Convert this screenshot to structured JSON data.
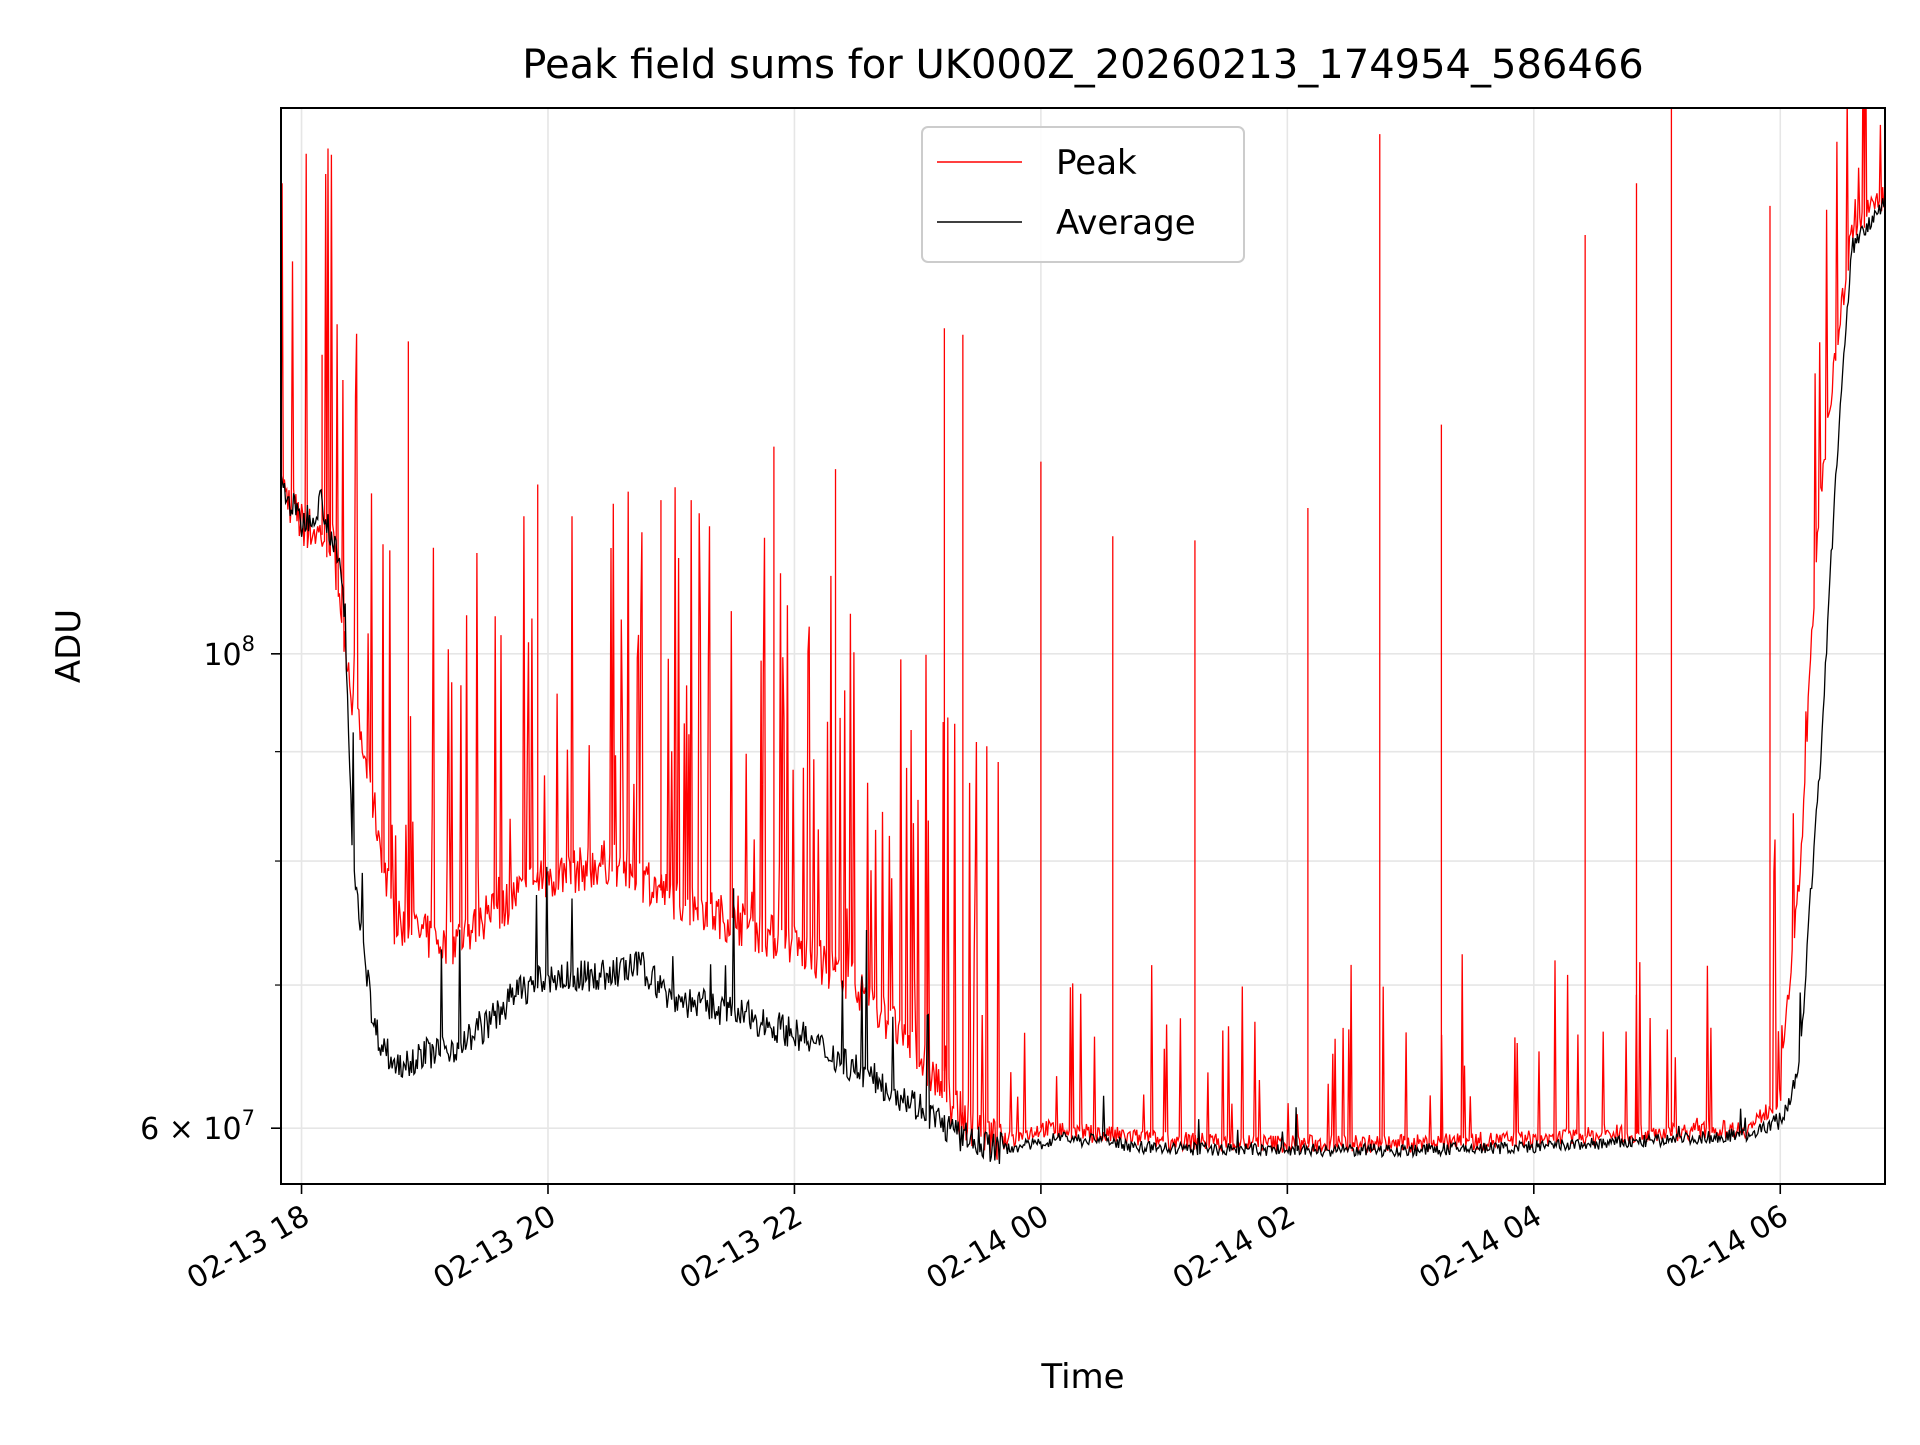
{
  "chart_data": {
    "type": "line",
    "title": "Peak field sums for UK000Z_20260213_174954_586466",
    "xlabel": "Time",
    "ylabel": "ADU",
    "x_scale": "time",
    "y_scale": "log",
    "xlim": [
      "2026-02-13 17:50",
      "2026-02-14 06:51"
    ],
    "ylim": [
      56500000,
      180000000
    ],
    "x_ticks": [
      {
        "value": "2026-02-13 18:00",
        "label": "02-13 18"
      },
      {
        "value": "2026-02-13 20:00",
        "label": "02-13 20"
      },
      {
        "value": "2026-02-13 22:00",
        "label": "02-13 22"
      },
      {
        "value": "2026-02-14 00:00",
        "label": "02-14 00"
      },
      {
        "value": "2026-02-14 02:00",
        "label": "02-14 02"
      },
      {
        "value": "2026-02-14 04:00",
        "label": "02-14 04"
      },
      {
        "value": "2026-02-14 06:00",
        "label": "02-14 06"
      }
    ],
    "y_ticks_major": [
      {
        "value": 60000000,
        "label": "6 × 10",
        "exp": "7"
      },
      {
        "value": 100000000,
        "label": "10",
        "exp": "8"
      }
    ],
    "y_ticks_minor": [
      70000000,
      80000000,
      90000000
    ],
    "grid": true,
    "legend": {
      "position": "upper center"
    },
    "series": [
      {
        "name": "Peak",
        "color": "#ff0000",
        "x": [
          "2026-02-13 17:50",
          "2026-02-13 18:00",
          "2026-02-13 18:15",
          "2026-02-13 18:25",
          "2026-02-13 18:45",
          "2026-02-13 19:10",
          "2026-02-13 19:30",
          "2026-02-13 19:50",
          "2026-02-13 20:30",
          "2026-02-13 21:00",
          "2026-02-13 21:30",
          "2026-02-13 22:00",
          "2026-02-13 22:30",
          "2026-02-13 23:00",
          "2026-02-13 23:20",
          "2026-02-13 23:40",
          "2026-02-14 00:00",
          "2026-02-14 01:00",
          "2026-02-14 02:00",
          "2026-02-14 03:00",
          "2026-02-14 04:00",
          "2026-02-14 05:00",
          "2026-02-14 05:45",
          "2026-02-14 06:00",
          "2026-02-14 06:10",
          "2026-02-14 06:20",
          "2026-02-14 06:35",
          "2026-02-14 06:51"
        ],
        "y": [
          120000000,
          115000000,
          113000000,
          95000000,
          75000000,
          73000000,
          75000000,
          78000000,
          80000000,
          77000000,
          75000000,
          73000000,
          70000000,
          65000000,
          61000000,
          59000000,
          60000000,
          59200000,
          59000000,
          59000000,
          59300000,
          59700000,
          60000000,
          62000000,
          80000000,
          120000000,
          158000000,
          164000000
        ],
        "spikes": [
          {
            "x": "2026-02-13 18:10",
            "y": 138000000
          },
          {
            "x": "2026-02-13 18:52",
            "y": 140000000
          },
          {
            "x": "2026-02-13 19:55",
            "y": 120000000
          },
          {
            "x": "2026-02-13 20:55",
            "y": 118000000
          },
          {
            "x": "2026-02-13 21:50",
            "y": 125000000
          },
          {
            "x": "2026-02-13 22:20",
            "y": 122000000
          },
          {
            "x": "2026-02-13 23:13",
            "y": 142000000
          },
          {
            "x": "2026-02-13 23:22",
            "y": 141000000
          },
          {
            "x": "2026-02-14 00:00",
            "y": 123000000
          },
          {
            "x": "2026-02-14 00:35",
            "y": 113500000
          },
          {
            "x": "2026-02-14 01:15",
            "y": 113000000
          },
          {
            "x": "2026-02-14 02:10",
            "y": 117000000
          },
          {
            "x": "2026-02-14 02:45",
            "y": 175000000
          },
          {
            "x": "2026-02-14 03:15",
            "y": 128000000
          },
          {
            "x": "2026-02-14 04:25",
            "y": 157000000
          },
          {
            "x": "2026-02-14 04:50",
            "y": 166000000
          },
          {
            "x": "2026-02-14 05:07",
            "y": 180000000
          },
          {
            "x": "2026-02-14 05:55",
            "y": 162000000
          }
        ]
      },
      {
        "name": "Average",
        "color": "#000000",
        "x": [
          "2026-02-13 17:50",
          "2026-02-13 18:00",
          "2026-02-13 18:10",
          "2026-02-13 18:20",
          "2026-02-13 18:25",
          "2026-02-13 18:35",
          "2026-02-13 18:45",
          "2026-02-13 19:00",
          "2026-02-13 19:15",
          "2026-02-13 19:30",
          "2026-02-13 19:45",
          "2026-02-13 20:00",
          "2026-02-13 20:30",
          "2026-02-13 20:45",
          "2026-02-13 21:00",
          "2026-02-13 21:30",
          "2026-02-13 22:00",
          "2026-02-13 22:30",
          "2026-02-13 23:00",
          "2026-02-13 23:20",
          "2026-02-13 23:40",
          "2026-02-14 00:00",
          "2026-02-14 00:10",
          "2026-02-14 00:20",
          "2026-02-14 00:30",
          "2026-02-14 00:40",
          "2026-02-14 01:00",
          "2026-02-14 02:00",
          "2026-02-14 03:00",
          "2026-02-14 04:00",
          "2026-02-14 05:00",
          "2026-02-14 05:45",
          "2026-02-14 06:00",
          "2026-02-14 06:05",
          "2026-02-14 06:10",
          "2026-02-14 06:20",
          "2026-02-14 06:35",
          "2026-02-14 06:51"
        ],
        "y": [
          120000000,
          115000000,
          118000000,
          108000000,
          80000000,
          67000000,
          64200000,
          65000000,
          65500000,
          67000000,
          69500000,
          70500000,
          70800000,
          71500000,
          69000000,
          68000000,
          66500000,
          64000000,
          61500000,
          59500000,
          58700000,
          59000000,
          59500000,
          59200000,
          59400000,
          58900000,
          58700000,
          58600000,
          58600000,
          58800000,
          59200000,
          59600000,
          60500000,
          62000000,
          65000000,
          90000000,
          155000000,
          163000000
        ]
      }
    ]
  }
}
